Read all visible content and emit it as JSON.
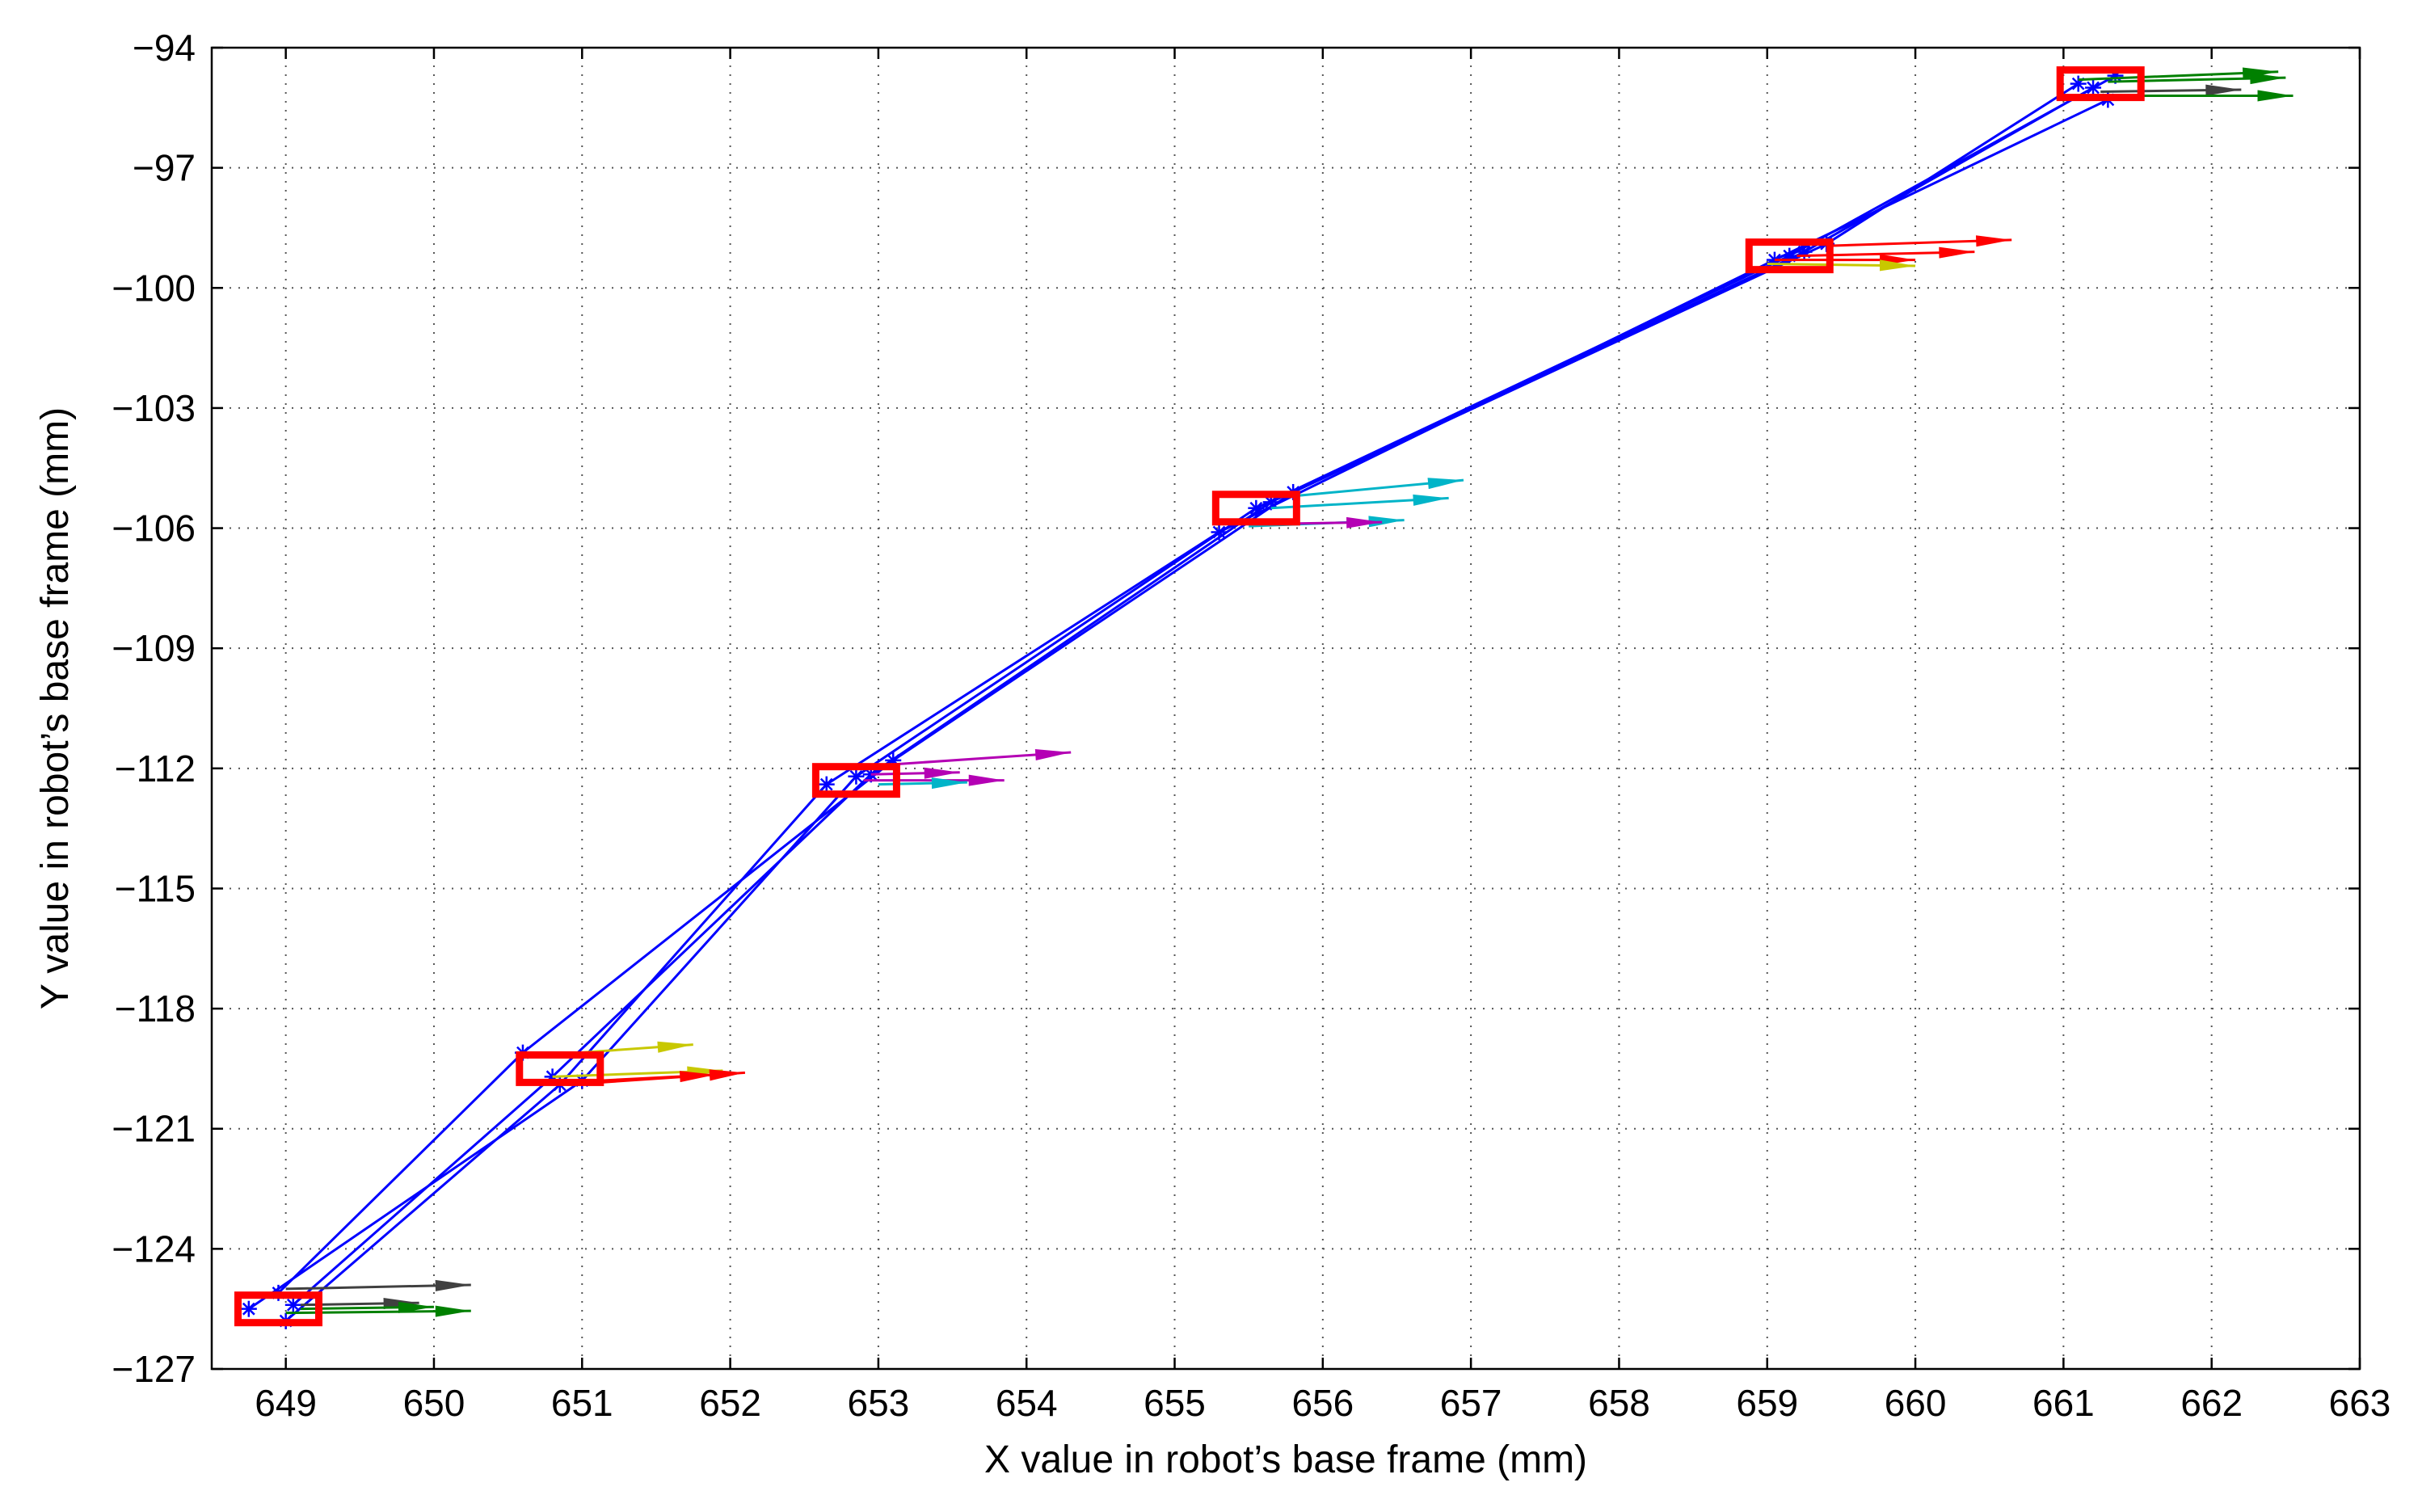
{
  "chart_data": {
    "type": "scatter",
    "title": "",
    "xlabel": "X value in robot’s base frame (mm)",
    "ylabel": "Y value in robot’s base frame (mm)",
    "xlim": [
      648.5,
      663
    ],
    "ylim": [
      -127,
      -94
    ],
    "xticks": [
      649,
      650,
      651,
      652,
      653,
      654,
      655,
      656,
      657,
      658,
      659,
      660,
      661,
      662,
      663
    ],
    "yticks": [
      -94,
      -97,
      -100,
      -103,
      -106,
      -109,
      -112,
      -115,
      -118,
      -121,
      -124,
      -127
    ],
    "xtick_labels": [
      "649",
      "650",
      "651",
      "652",
      "653",
      "654",
      "655",
      "656",
      "657",
      "658",
      "659",
      "660",
      "661",
      "662",
      "663"
    ],
    "ytick_labels": [
      "−94",
      "−97",
      "−100",
      "−103",
      "−106",
      "−109",
      "−112",
      "−115",
      "−118",
      "−121",
      "−124",
      "−127"
    ],
    "grid": true,
    "colors": {
      "trajectory": "#0000ff",
      "target": "#ff0000",
      "arrows": [
        "#404040",
        "#008000",
        "#c8c800",
        "#ff0000",
        "#b400b4",
        "#00b4c8"
      ]
    },
    "targets": [
      {
        "x": 648.95,
        "y": -125.5
      },
      {
        "x": 650.85,
        "y": -119.5
      },
      {
        "x": 652.85,
        "y": -112.3
      },
      {
        "x": 655.55,
        "y": -105.5
      },
      {
        "x": 659.15,
        "y": -99.2
      },
      {
        "x": 661.25,
        "y": -94.9
      }
    ],
    "series": [
      {
        "points": [
          [
            648.75,
            -125.5
          ],
          [
            651.0,
            -119.8
          ],
          [
            652.85,
            -112.2
          ],
          [
            655.55,
            -105.5
          ],
          [
            659.15,
            -99.2
          ],
          [
            661.35,
            -94.7
          ]
        ]
      },
      {
        "points": [
          [
            648.95,
            -125.1
          ],
          [
            650.6,
            -119.1
          ],
          [
            653.1,
            -111.8
          ],
          [
            655.8,
            -105.1
          ],
          [
            659.4,
            -98.9
          ],
          [
            661.1,
            -94.9
          ]
        ]
      },
      {
        "points": [
          [
            649.0,
            -125.8
          ],
          [
            650.85,
            -119.9
          ],
          [
            652.65,
            -112.4
          ],
          [
            655.3,
            -106.1
          ],
          [
            659.05,
            -99.3
          ],
          [
            661.3,
            -95.3
          ]
        ]
      },
      {
        "points": [
          [
            649.05,
            -125.4
          ],
          [
            650.8,
            -119.7
          ],
          [
            652.95,
            -112.15
          ],
          [
            655.65,
            -105.35
          ],
          [
            659.25,
            -99.1
          ],
          [
            661.2,
            -95.0
          ]
        ]
      }
    ],
    "arrows": [
      {
        "x0": 649.0,
        "y0": -125.0,
        "x1": 650.25,
        "y1": -124.9,
        "color": "#404040"
      },
      {
        "x0": 649.1,
        "y0": -125.4,
        "x1": 649.9,
        "y1": -125.35,
        "color": "#404040"
      },
      {
        "x0": 649.0,
        "y0": -125.6,
        "x1": 650.25,
        "y1": -125.55,
        "color": "#008000"
      },
      {
        "x0": 649.1,
        "y0": -125.5,
        "x1": 650.0,
        "y1": -125.45,
        "color": "#008000"
      },
      {
        "x0": 650.6,
        "y0": -119.2,
        "x1": 651.75,
        "y1": -118.9,
        "color": "#c8c800"
      },
      {
        "x0": 650.8,
        "y0": -119.7,
        "x1": 651.95,
        "y1": -119.55,
        "color": "#c8c800"
      },
      {
        "x0": 650.9,
        "y0": -119.9,
        "x1": 652.1,
        "y1": -119.6,
        "color": "#ff0000"
      },
      {
        "x0": 650.85,
        "y0": -119.85,
        "x1": 651.9,
        "y1": -119.65,
        "color": "#ff0000"
      },
      {
        "x0": 653.1,
        "y0": -111.9,
        "x1": 654.3,
        "y1": -111.6,
        "color": "#b400b4"
      },
      {
        "x0": 652.9,
        "y0": -112.3,
        "x1": 653.85,
        "y1": -112.3,
        "color": "#b400b4"
      },
      {
        "x0": 652.95,
        "y0": -112.15,
        "x1": 653.55,
        "y1": -112.1,
        "color": "#b400b4"
      },
      {
        "x0": 653.0,
        "y0": -112.4,
        "x1": 653.6,
        "y1": -112.35,
        "color": "#00b4c8"
      },
      {
        "x0": 655.8,
        "y0": -105.2,
        "x1": 656.95,
        "y1": -104.8,
        "color": "#00b4c8"
      },
      {
        "x0": 655.65,
        "y0": -105.5,
        "x1": 656.85,
        "y1": -105.25,
        "color": "#00b4c8"
      },
      {
        "x0": 655.5,
        "y0": -105.95,
        "x1": 656.55,
        "y1": -105.8,
        "color": "#00b4c8"
      },
      {
        "x0": 655.55,
        "y0": -105.9,
        "x1": 656.4,
        "y1": -105.85,
        "color": "#b400b4"
      },
      {
        "x0": 659.4,
        "y0": -98.95,
        "x1": 660.65,
        "y1": -98.8,
        "color": "#ff0000"
      },
      {
        "x0": 659.2,
        "y0": -99.2,
        "x1": 660.4,
        "y1": -99.1,
        "color": "#ff0000"
      },
      {
        "x0": 659.05,
        "y0": -99.3,
        "x1": 660.0,
        "y1": -99.3,
        "color": "#ff0000"
      },
      {
        "x0": 659.0,
        "y0": -99.4,
        "x1": 660.0,
        "y1": -99.45,
        "color": "#c8c800"
      },
      {
        "x0": 661.1,
        "y0": -94.8,
        "x1": 662.45,
        "y1": -94.6,
        "color": "#008000"
      },
      {
        "x0": 661.3,
        "y0": -94.85,
        "x1": 662.5,
        "y1": -94.75,
        "color": "#008000"
      },
      {
        "x0": 661.25,
        "y0": -95.1,
        "x1": 662.2,
        "y1": -95.05,
        "color": "#404040"
      },
      {
        "x0": 661.35,
        "y0": -95.2,
        "x1": 662.55,
        "y1": -95.2,
        "color": "#008000"
      }
    ]
  }
}
